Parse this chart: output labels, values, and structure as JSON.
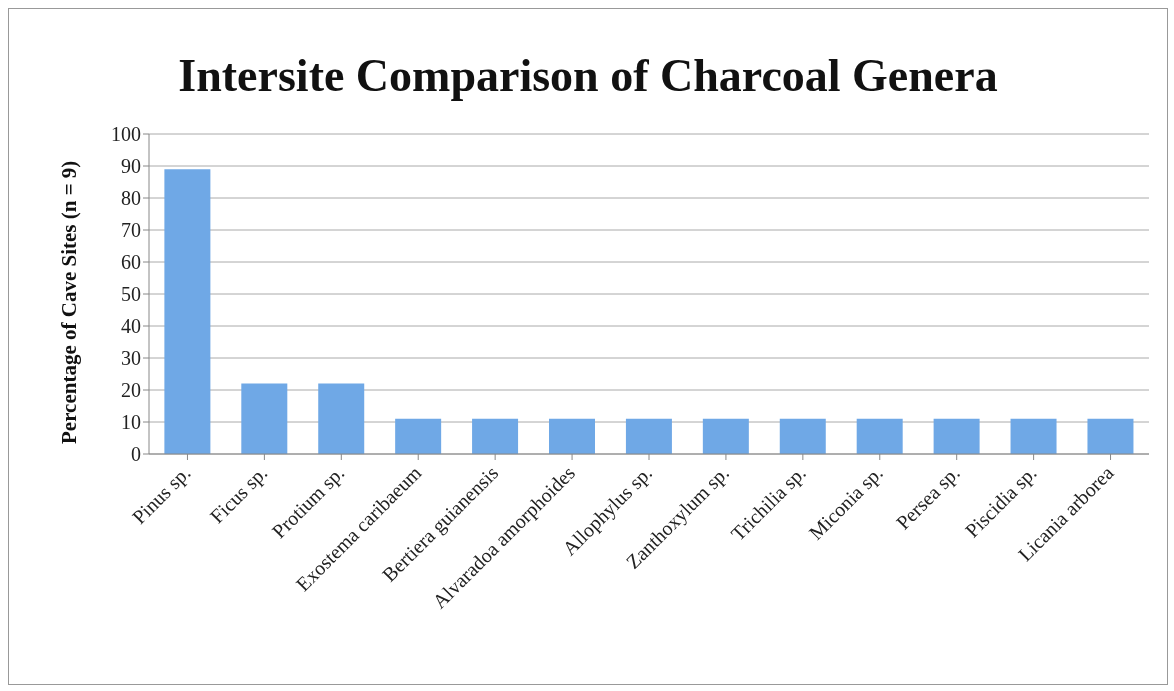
{
  "chart_data": {
    "type": "bar",
    "title": "Intersite Comparison of Charcoal Genera",
    "ylabel": "Percentage of Cave Sites (n = 9)",
    "categories": [
      "Pinus sp.",
      "Ficus sp.",
      "Protium sp.",
      "Exostema caribaeum",
      "Bertiera guianensis",
      "Alvaradoa amorphoides",
      "Allophylus sp.",
      "Zanthoxylum sp.",
      "Trichilia sp.",
      "Miconia sp.",
      "Persea sp.",
      "Piscidia sp.",
      "Licania arborea"
    ],
    "values": [
      89,
      22,
      22,
      11,
      11,
      11,
      11,
      11,
      11,
      11,
      11,
      11,
      11
    ],
    "color": "#6fa8e6",
    "ylim": [
      0,
      100
    ],
    "yticks": [
      0,
      10,
      20,
      30,
      40,
      50,
      60,
      70,
      80,
      90,
      100
    ],
    "grid": "y",
    "legend": false
  }
}
